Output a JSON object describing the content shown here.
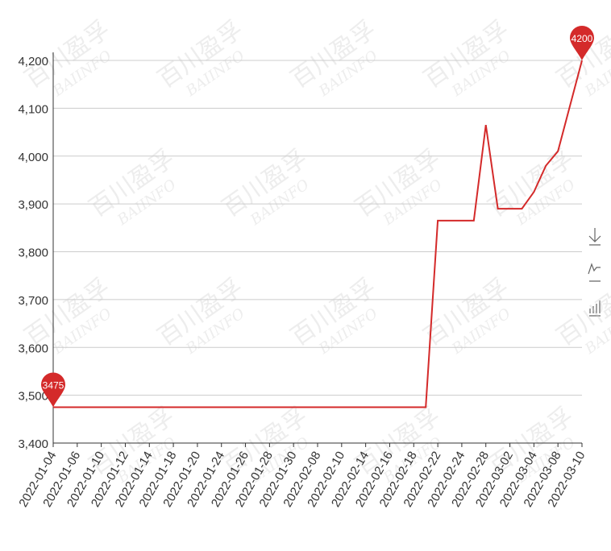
{
  "chart_data": {
    "type": "line",
    "watermark": {
      "text": "百川盈孚",
      "subtext": "BAIINFO"
    },
    "categories": [
      "2022-01-04",
      null,
      "2022-01-06",
      null,
      "2022-01-10",
      null,
      "2022-01-12",
      null,
      "2022-01-14",
      null,
      "2022-01-18",
      null,
      "2022-01-20",
      null,
      "2022-01-24",
      null,
      "2022-01-26",
      null,
      "2022-01-28",
      null,
      "2022-01-30",
      null,
      "2022-02-08",
      null,
      "2022-02-10",
      null,
      "2022-02-14",
      null,
      "2022-02-16",
      null,
      "2022-02-18",
      null,
      "2022-02-22",
      null,
      "2022-02-24",
      null,
      "2022-02-28",
      null,
      "2022-03-02",
      null,
      "2022-03-04",
      null,
      "2022-03-08",
      null,
      "2022-03-10"
    ],
    "values": [
      3475,
      3475,
      3475,
      3475,
      3475,
      3475,
      3475,
      3475,
      3475,
      3475,
      3475,
      3475,
      3475,
      3475,
      3475,
      3475,
      3475,
      3475,
      3475,
      3475,
      3475,
      3475,
      3475,
      3475,
      3475,
      3475,
      3475,
      3475,
      3475,
      3475,
      3475,
      3475,
      3865,
      3865,
      3865,
      3865,
      4065,
      3890,
      3890,
      3890,
      3925,
      3980,
      4010,
      4105,
      4200
    ],
    "color": "#d42a2a",
    "ylim": [
      3400,
      4200
    ],
    "yticks": [
      {
        "value": 3400,
        "label": "3,400"
      },
      {
        "value": 3500,
        "label": "3,500"
      },
      {
        "value": 3600,
        "label": "3,600"
      },
      {
        "value": 3700,
        "label": "3,700"
      },
      {
        "value": 3800,
        "label": "3,800"
      },
      {
        "value": 3900,
        "label": "3,900"
      },
      {
        "value": 4000,
        "label": "4,000"
      },
      {
        "value": 4100,
        "label": "4,100"
      },
      {
        "value": 4200,
        "label": "4,200"
      }
    ],
    "grid": true
  }
}
